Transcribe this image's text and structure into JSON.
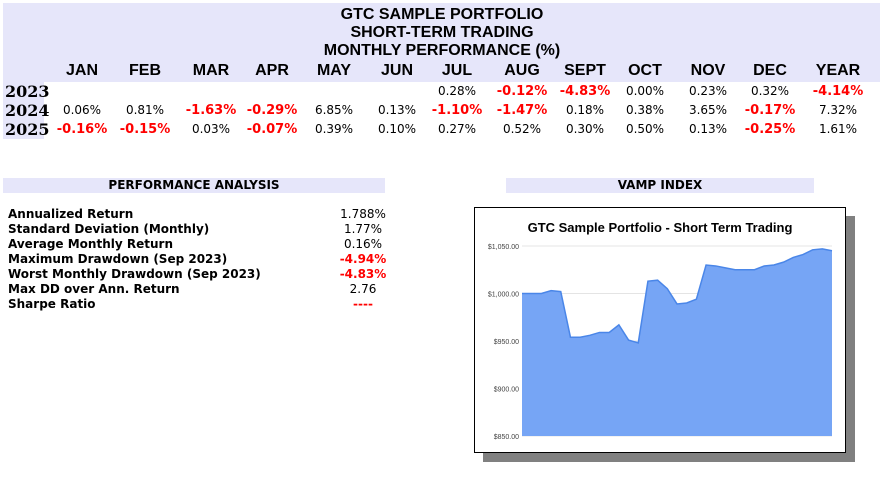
{
  "header": {
    "line1": "GTC SAMPLE PORTFOLIO",
    "line2": "SHORT-TERM TRADING",
    "line3": "MONTHLY PERFORMANCE (%)"
  },
  "months": [
    "JAN",
    "FEB",
    "MAR",
    "APR",
    "MAY",
    "JUN",
    "JUL",
    "AUG",
    "SEPT",
    "OCT",
    "NOV",
    "DEC",
    "YEAR"
  ],
  "rows": [
    {
      "year": "2023",
      "values": [
        "",
        "",
        "",
        "",
        "",
        "",
        "0.28%",
        "-0.12%",
        "-4.83%",
        "0.00%",
        "0.23%",
        "0.32%",
        "-4.14%"
      ]
    },
    {
      "year": "2024",
      "values": [
        "0.06%",
        "0.81%",
        "-1.63%",
        "-0.29%",
        "6.85%",
        "0.13%",
        "-1.10%",
        "-1.47%",
        "0.18%",
        "0.38%",
        "3.65%",
        "-0.17%",
        "7.32%"
      ]
    },
    {
      "year": "2025",
      "values": [
        "-0.16%",
        "-0.15%",
        "0.03%",
        "-0.07%",
        "0.39%",
        "0.10%",
        "0.27%",
        "0.52%",
        "0.30%",
        "0.50%",
        "0.13%",
        "-0.25%",
        "1.61%"
      ]
    }
  ],
  "analysis": {
    "title": "PERFORMANCE ANALYSIS",
    "items": [
      {
        "label": "Annualized Return",
        "value": "1.788%"
      },
      {
        "label": "Standard Deviation (Monthly)",
        "value": "1.77%"
      },
      {
        "label": "Average Monthly Return",
        "value": "0.16%"
      },
      {
        "label": "Maximum Drawdown (Sep 2023)",
        "value": "-4.94%"
      },
      {
        "label": "Worst Monthly Drawdown (Sep 2023)",
        "value": "-4.83%"
      },
      {
        "label": "Max DD over Ann. Return",
        "value": "2.76"
      },
      {
        "label": "Sharpe Ratio",
        "value": "----"
      }
    ]
  },
  "vamp": {
    "title": "VAMP INDEX"
  },
  "colors": {
    "negative": "#ff0000",
    "band": "#e6e6fa",
    "area": "#76a5f5",
    "line": "#4a86e8"
  },
  "chart_data": {
    "type": "area",
    "title": "GTC Sample Portfolio - Short Term Trading",
    "ylim": [
      850,
      1050
    ],
    "yticks": [
      "$850.00",
      "$900.00",
      "$950.00",
      "$1,000.00",
      "$1,050.00"
    ],
    "grid": true,
    "values": [
      1000,
      1000,
      1000,
      1003,
      1002,
      954,
      954,
      956,
      959,
      959,
      967,
      951,
      948,
      1013,
      1014,
      1005,
      989,
      990,
      994,
      1030,
      1029,
      1027,
      1025,
      1025,
      1025,
      1029,
      1030,
      1033,
      1038,
      1041,
      1046,
      1047,
      1045
    ]
  }
}
